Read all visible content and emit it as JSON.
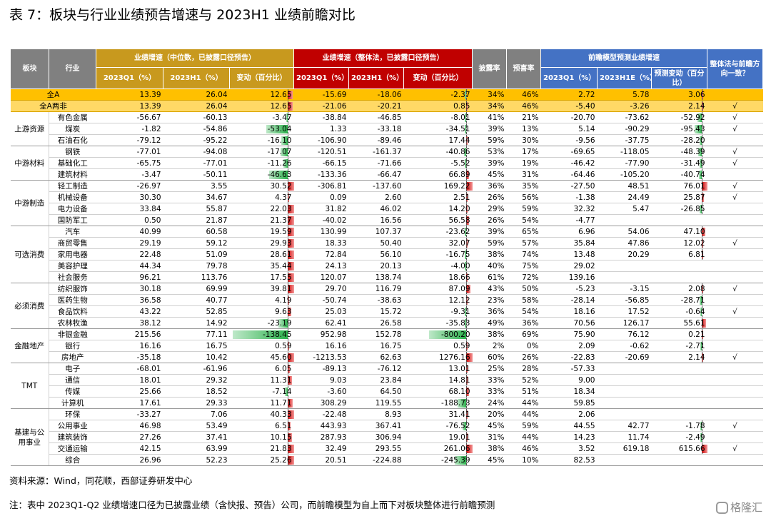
{
  "title": "表 7：板块与行业业绩预告增速与 2023H1 业绩前瞻对比",
  "headers": {
    "sector": "板块",
    "industry": "行业",
    "group_median": "业绩增速（中位数，已披露口径预告）",
    "group_overall": "业绩增速（整体法，已披露口径预告）",
    "disclosure_rate": "披露率",
    "positive_rate": "预喜率",
    "group_forecast": "前瞻模型预测业绩增速",
    "consistency": "整体法与前瞻方向一致？",
    "q1": "2023Q1（%）",
    "h1": "2023H1（%）",
    "change": "变动（百分比）",
    "h1e": "2023H1E（%）",
    "forecast_change": "预测变动（百分比）"
  },
  "summary_rows": [
    {
      "label": "全A",
      "med_q1": "13.39",
      "med_h1": "26.04",
      "med_chg": "12.65",
      "ov_q1": "-15.69",
      "ov_h1": "-18.06",
      "ov_chg": "-2.37",
      "disc": "34%",
      "pos": "46%",
      "f_q1": "2.72",
      "f_h1e": "5.78",
      "f_chg": "3.06",
      "consistent": ""
    },
    {
      "label": "全A两非",
      "med_q1": "13.39",
      "med_h1": "26.04",
      "med_chg": "12.65",
      "ov_q1": "-21.06",
      "ov_h1": "-20.21",
      "ov_chg": "0.85",
      "disc": "34%",
      "pos": "46%",
      "f_q1": "-5.40",
      "f_h1e": "-3.26",
      "f_chg": "2.14",
      "consistent": "√"
    }
  ],
  "groups": [
    {
      "sector": "上游资源",
      "rows": [
        {
          "industry": "有色金属",
          "med_q1": "-56.67",
          "med_h1": "-60.13",
          "med_chg": "-3.47",
          "ov_q1": "-38.84",
          "ov_h1": "-46.85",
          "ov_chg": "-8.01",
          "disc": "41%",
          "pos": "21%",
          "f_q1": "-20.70",
          "f_h1e": "-73.62",
          "f_chg": "-52.92",
          "consistent": "√"
        },
        {
          "industry": "煤炭",
          "med_q1": "-1.82",
          "med_h1": "-54.86",
          "med_chg": "-53.04",
          "ov_q1": "1.33",
          "ov_h1": "-33.18",
          "ov_chg": "-34.51",
          "disc": "39%",
          "pos": "13%",
          "f_q1": "5.14",
          "f_h1e": "-90.29",
          "f_chg": "-95.43",
          "consistent": "√"
        },
        {
          "industry": "石油石化",
          "med_q1": "-79.12",
          "med_h1": "-95.22",
          "med_chg": "-16.10",
          "ov_q1": "-106.90",
          "ov_h1": "-89.46",
          "ov_chg": "17.44",
          "disc": "59%",
          "pos": "30%",
          "f_q1": "-9.56",
          "f_h1e": "-37.75",
          "f_chg": "-28.20",
          "consistent": ""
        }
      ]
    },
    {
      "sector": "中游材料",
      "rows": [
        {
          "industry": "钢铁",
          "med_q1": "-77.01",
          "med_h1": "-94.08",
          "med_chg": "-17.07",
          "ov_q1": "-120.51",
          "ov_h1": "-161.37",
          "ov_chg": "-40.86",
          "disc": "53%",
          "pos": "17%",
          "f_q1": "-69.65",
          "f_h1e": "-118.05",
          "f_chg": "-48.39",
          "consistent": "√"
        },
        {
          "industry": "基础化工",
          "med_q1": "-65.75",
          "med_h1": "-77.01",
          "med_chg": "-11.26",
          "ov_q1": "-66.15",
          "ov_h1": "-71.66",
          "ov_chg": "-5.52",
          "disc": "39%",
          "pos": "19%",
          "f_q1": "-46.42",
          "f_h1e": "-77.90",
          "f_chg": "-31.49",
          "consistent": "√"
        },
        {
          "industry": "建筑材料",
          "med_q1": "-3.47",
          "med_h1": "-50.11",
          "med_chg": "-46.63",
          "ov_q1": "-133.36",
          "ov_h1": "-66.47",
          "ov_chg": "66.89",
          "disc": "45%",
          "pos": "31%",
          "f_q1": "-64.46",
          "f_h1e": "-105.20",
          "f_chg": "-40.74",
          "consistent": ""
        }
      ]
    },
    {
      "sector": "中游制造",
      "rows": [
        {
          "industry": "轻工制造",
          "med_q1": "-26.97",
          "med_h1": "3.55",
          "med_chg": "30.52",
          "ov_q1": "-306.81",
          "ov_h1": "-137.60",
          "ov_chg": "169.22",
          "disc": "36%",
          "pos": "35%",
          "f_q1": "-27.50",
          "f_h1e": "48.51",
          "f_chg": "76.01",
          "consistent": "√"
        },
        {
          "industry": "机械设备",
          "med_q1": "30.30",
          "med_h1": "34.67",
          "med_chg": "4.37",
          "ov_q1": "0.09",
          "ov_h1": "2.60",
          "ov_chg": "2.51",
          "disc": "26%",
          "pos": "56%",
          "f_q1": "-1.38",
          "f_h1e": "24.49",
          "f_chg": "25.87",
          "consistent": "√"
        },
        {
          "industry": "电力设备",
          "med_q1": "33.84",
          "med_h1": "55.87",
          "med_chg": "22.03",
          "ov_q1": "31.82",
          "ov_h1": "46.02",
          "ov_chg": "14.20",
          "disc": "29%",
          "pos": "59%",
          "f_q1": "32.32",
          "f_h1e": "5.47",
          "f_chg": "-26.85",
          "consistent": ""
        },
        {
          "industry": "国防军工",
          "med_q1": "0.50",
          "med_h1": "21.87",
          "med_chg": "21.37",
          "ov_q1": "-40.02",
          "ov_h1": "16.56",
          "ov_chg": "56.58",
          "disc": "26%",
          "pos": "54%",
          "f_q1": "-4.77",
          "f_h1e": "",
          "f_chg": "",
          "consistent": ""
        }
      ]
    },
    {
      "sector": "可选消费",
      "rows": [
        {
          "industry": "汽车",
          "med_q1": "40.99",
          "med_h1": "60.58",
          "med_chg": "19.59",
          "ov_q1": "130.99",
          "ov_h1": "107.37",
          "ov_chg": "-23.62",
          "disc": "39%",
          "pos": "65%",
          "f_q1": "6.96",
          "f_h1e": "54.06",
          "f_chg": "47.10",
          "consistent": ""
        },
        {
          "industry": "商贸零售",
          "med_q1": "29.19",
          "med_h1": "59.12",
          "med_chg": "29.93",
          "ov_q1": "18.33",
          "ov_h1": "50.40",
          "ov_chg": "32.07",
          "disc": "59%",
          "pos": "57%",
          "f_q1": "35.84",
          "f_h1e": "47.86",
          "f_chg": "12.02",
          "consistent": "√"
        },
        {
          "industry": "家用电器",
          "med_q1": "22.48",
          "med_h1": "51.09",
          "med_chg": "28.61",
          "ov_q1": "72.84",
          "ov_h1": "56.10",
          "ov_chg": "-16.75",
          "disc": "38%",
          "pos": "74%",
          "f_q1": "13.48",
          "f_h1e": "20.29",
          "f_chg": "6.81",
          "consistent": ""
        },
        {
          "industry": "美容护理",
          "med_q1": "44.34",
          "med_h1": "79.78",
          "med_chg": "35.44",
          "ov_q1": "24.13",
          "ov_h1": "20.13",
          "ov_chg": "-4.00",
          "disc": "40%",
          "pos": "75%",
          "f_q1": "29.02",
          "f_h1e": "",
          "f_chg": "",
          "consistent": ""
        },
        {
          "industry": "社会服务",
          "med_q1": "96.21",
          "med_h1": "113.76",
          "med_chg": "17.55",
          "ov_q1": "120.07",
          "ov_h1": "138.74",
          "ov_chg": "18.66",
          "disc": "61%",
          "pos": "72%",
          "f_q1": "139.16",
          "f_h1e": "",
          "f_chg": "",
          "consistent": ""
        }
      ]
    },
    {
      "sector": "必须消费",
      "rows": [
        {
          "industry": "纺织服饰",
          "med_q1": "30.18",
          "med_h1": "69.99",
          "med_chg": "39.81",
          "ov_q1": "29.70",
          "ov_h1": "116.79",
          "ov_chg": "87.09",
          "disc": "43%",
          "pos": "50%",
          "f_q1": "-5.23",
          "f_h1e": "-3.15",
          "f_chg": "2.08",
          "consistent": "√"
        },
        {
          "industry": "医药生物",
          "med_q1": "36.58",
          "med_h1": "40.77",
          "med_chg": "4.19",
          "ov_q1": "-50.74",
          "ov_h1": "-38.63",
          "ov_chg": "12.12",
          "disc": "23%",
          "pos": "58%",
          "f_q1": "-28.14",
          "f_h1e": "-56.85",
          "f_chg": "-28.71",
          "consistent": ""
        },
        {
          "industry": "食品饮料",
          "med_q1": "43.22",
          "med_h1": "52.85",
          "med_chg": "9.63",
          "ov_q1": "25.03",
          "ov_h1": "15.72",
          "ov_chg": "-9.31",
          "disc": "36%",
          "pos": "54%",
          "f_q1": "18.16",
          "f_h1e": "17.52",
          "f_chg": "-0.64",
          "consistent": "√"
        },
        {
          "industry": "农林牧渔",
          "med_q1": "38.12",
          "med_h1": "14.92",
          "med_chg": "-23.19",
          "ov_q1": "62.41",
          "ov_h1": "26.58",
          "ov_chg": "-35.83",
          "disc": "49%",
          "pos": "36%",
          "f_q1": "70.56",
          "f_h1e": "126.17",
          "f_chg": "55.61",
          "consistent": ""
        }
      ]
    },
    {
      "sector": "金融地产",
      "rows": [
        {
          "industry": "非银金融",
          "med_q1": "215.56",
          "med_h1": "77.11",
          "med_chg": "-138.45",
          "ov_q1": "952.98",
          "ov_h1": "152.78",
          "ov_chg": "-800.20",
          "disc": "38%",
          "pos": "69%",
          "f_q1": "75.90",
          "f_h1e": "76.12",
          "f_chg": "0.21",
          "consistent": ""
        },
        {
          "industry": "银行",
          "med_q1": "16.16",
          "med_h1": "16.75",
          "med_chg": "0.59",
          "ov_q1": "16.16",
          "ov_h1": "16.75",
          "ov_chg": "0.59",
          "disc": "2%",
          "pos": "0%",
          "f_q1": "2.09",
          "f_h1e": "-0.62",
          "f_chg": "-2.71",
          "consistent": ""
        },
        {
          "industry": "房地产",
          "med_q1": "-35.18",
          "med_h1": "10.42",
          "med_chg": "45.60",
          "ov_q1": "-1213.53",
          "ov_h1": "62.63",
          "ov_chg": "1276.16",
          "disc": "60%",
          "pos": "26%",
          "f_q1": "-22.83",
          "f_h1e": "-20.69",
          "f_chg": "2.14",
          "consistent": "√"
        }
      ]
    },
    {
      "sector": "TMT",
      "rows": [
        {
          "industry": "电子",
          "med_q1": "-68.01",
          "med_h1": "-61.96",
          "med_chg": "6.05",
          "ov_q1": "-89.13",
          "ov_h1": "-76.12",
          "ov_chg": "13.01",
          "disc": "25%",
          "pos": "28%",
          "f_q1": "-57.33",
          "f_h1e": "",
          "f_chg": "",
          "consistent": ""
        },
        {
          "industry": "通信",
          "med_q1": "18.01",
          "med_h1": "29.32",
          "med_chg": "11.31",
          "ov_q1": "9.03",
          "ov_h1": "23.84",
          "ov_chg": "14.81",
          "disc": "33%",
          "pos": "52%",
          "f_q1": "9.00",
          "f_h1e": "",
          "f_chg": "",
          "consistent": ""
        },
        {
          "industry": "传媒",
          "med_q1": "25.66",
          "med_h1": "18.52",
          "med_chg": "-7.14",
          "ov_q1": "-3.60",
          "ov_h1": "64.50",
          "ov_chg": "68.10",
          "disc": "33%",
          "pos": "51%",
          "f_q1": "18.34",
          "f_h1e": "",
          "f_chg": "",
          "consistent": ""
        },
        {
          "industry": "计算机",
          "med_q1": "17.61",
          "med_h1": "29.33",
          "med_chg": "11.71",
          "ov_q1": "308.29",
          "ov_h1": "119.55",
          "ov_chg": "-188.73",
          "disc": "24%",
          "pos": "44%",
          "f_q1": "59.85",
          "f_h1e": "",
          "f_chg": "",
          "consistent": ""
        }
      ]
    },
    {
      "sector": "基建与公用事业",
      "rows": [
        {
          "industry": "环保",
          "med_q1": "-33.27",
          "med_h1": "7.06",
          "med_chg": "40.33",
          "ov_q1": "-22.48",
          "ov_h1": "8.93",
          "ov_chg": "31.41",
          "disc": "20%",
          "pos": "44%",
          "f_q1": "2.06",
          "f_h1e": "",
          "f_chg": "",
          "consistent": ""
        },
        {
          "industry": "公用事业",
          "med_q1": "46.98",
          "med_h1": "53.49",
          "med_chg": "6.51",
          "ov_q1": "443.93",
          "ov_h1": "367.41",
          "ov_chg": "-76.52",
          "disc": "45%",
          "pos": "59%",
          "f_q1": "44.55",
          "f_h1e": "42.77",
          "f_chg": "-1.78",
          "consistent": "√"
        },
        {
          "industry": "建筑装饰",
          "med_q1": "27.26",
          "med_h1": "37.41",
          "med_chg": "10.15",
          "ov_q1": "287.93",
          "ov_h1": "306.94",
          "ov_chg": "19.01",
          "disc": "31%",
          "pos": "44%",
          "f_q1": "14.23",
          "f_h1e": "11.74",
          "f_chg": "-2.49",
          "consistent": ""
        },
        {
          "industry": "交通运输",
          "med_q1": "42.15",
          "med_h1": "63.99",
          "med_chg": "21.83",
          "ov_q1": "32.49",
          "ov_h1": "293.55",
          "ov_chg": "261.06",
          "disc": "38%",
          "pos": "46%",
          "f_q1": "3.52",
          "f_h1e": "619.18",
          "f_chg": "615.66",
          "consistent": "√"
        },
        {
          "industry": "综合",
          "med_q1": "26.96",
          "med_h1": "52.23",
          "med_chg": "25.26",
          "ov_q1": "20.51",
          "ov_h1": "-224.88",
          "ov_chg": "-245.39",
          "disc": "45%",
          "pos": "10%",
          "f_q1": "82.53",
          "f_h1e": "",
          "f_chg": "",
          "consistent": ""
        }
      ]
    }
  ],
  "bar_scales": {
    "med_chg": 140,
    "ov_chg": 1280,
    "f_chg": 620
  },
  "colors": {
    "positive_bar": "#d00000",
    "negative_bar": "#2bb24c",
    "header_median": "#c8991e",
    "header_overall": "#c00000",
    "header_forecast": "#4472c4",
    "summary_row": "#ffc000"
  },
  "footnotes": {
    "source": "资料来源：Wind，同花顺，西部证券研发中心",
    "note": "注：表中 2023Q1-Q2 业绩增速口径为已披露业绩（含快报、预告）公司，而前瞻模型为自上而下对板块整体进行前瞻预测"
  },
  "watermark": "格隆汇"
}
